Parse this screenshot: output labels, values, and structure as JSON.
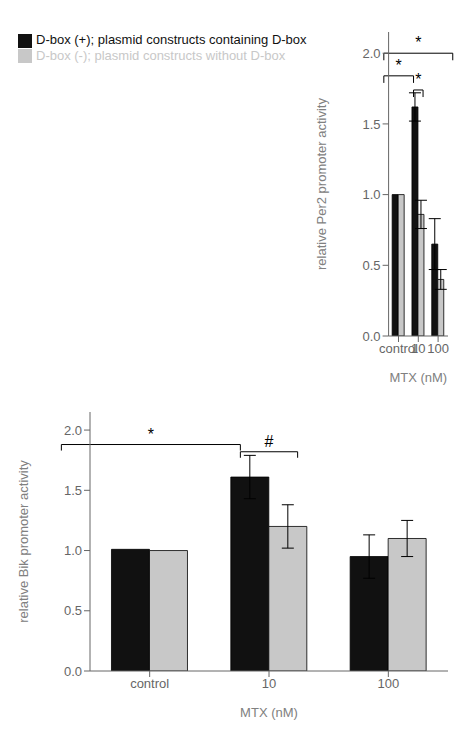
{
  "chart_data": [
    {
      "type": "bar",
      "legend": "top",
      "xlabel": "MTX (nM)",
      "ylabel": "relative Per2 promoter activity",
      "categories": [
        "control",
        "10",
        "100"
      ],
      "series": [
        {
          "name": "D-box (+); plasmid constructs containing D-box",
          "color": "#111111",
          "values": [
            1.0,
            1.62,
            0.65
          ],
          "errors": [
            0.0,
            0.1,
            0.18
          ]
        },
        {
          "name": "D-box (-); plasmid constructs without D-box",
          "color": "#c8c8c8",
          "values": [
            1.0,
            0.86,
            0.4
          ],
          "errors": [
            0.0,
            0.1,
            0.07
          ]
        }
      ],
      "ylim": [
        0,
        2.15
      ],
      "yticks": [
        {
          "value": 0,
          "label": "0.0"
        },
        0.5,
        {
          "value": 1.0,
          "label": "1.0"
        },
        1.5,
        {
          "value": 2.0,
          "label": "2.0"
        }
      ],
      "annotations": [
        {
          "text": "*",
          "y": 1.84,
          "from": {
            "category": "control",
            "series": "D-box (+); plasmid constructs containing D-box"
          },
          "to": {
            "category": "10",
            "series": "D-box (+); plasmid constructs containing D-box"
          }
        },
        {
          "text": "*",
          "y": 2.0,
          "from": {
            "category": "control",
            "series": "D-box (+); plasmid constructs containing D-box"
          },
          "to": {
            "category": "100",
            "series": "D-box (-); plasmid constructs without D-box"
          }
        },
        {
          "text": "*",
          "y": 1.74,
          "from": {
            "category": "10",
            "series": "D-box (+); plasmid constructs containing D-box"
          },
          "to": {
            "category": "10",
            "series": "D-box (-); plasmid constructs without D-box"
          }
        }
      ]
    },
    {
      "type": "bar",
      "xlabel": "MTX (nM)",
      "ylabel": "relative Bik promoter activity",
      "categories": [
        "control",
        "10",
        "100"
      ],
      "series": [
        {
          "name": "D-box (+); plasmid constructs containing D-box",
          "color": "#111111",
          "values": [
            1.01,
            1.61,
            0.95
          ],
          "errors": [
            0.0,
            0.18,
            0.18
          ]
        },
        {
          "name": "D-box (-); plasmid constructs without D-box",
          "color": "#c8c8c8",
          "values": [
            1.0,
            1.2,
            1.1
          ],
          "errors": [
            0.0,
            0.18,
            0.15
          ]
        }
      ],
      "ylim": [
        0,
        2.15
      ],
      "yticks": [
        {
          "value": 0,
          "label": "0.0"
        },
        0.5,
        {
          "value": 1.0,
          "label": "1.0"
        },
        1.5,
        {
          "value": 2.0,
          "label": "2.0"
        }
      ],
      "annotations": [
        {
          "text": "*",
          "y": 1.88,
          "from": {
            "category": "control",
            "series": "D-box (+); plasmid constructs containing D-box"
          },
          "to": {
            "category": "10",
            "series": "D-box (+); plasmid constructs containing D-box"
          }
        },
        {
          "text": "#",
          "y": 1.82,
          "from": {
            "category": "10",
            "series": "D-box (+); plasmid constructs containing D-box"
          },
          "to": {
            "category": "10",
            "series": "D-box (-); plasmid constructs without D-box"
          }
        }
      ]
    }
  ]
}
